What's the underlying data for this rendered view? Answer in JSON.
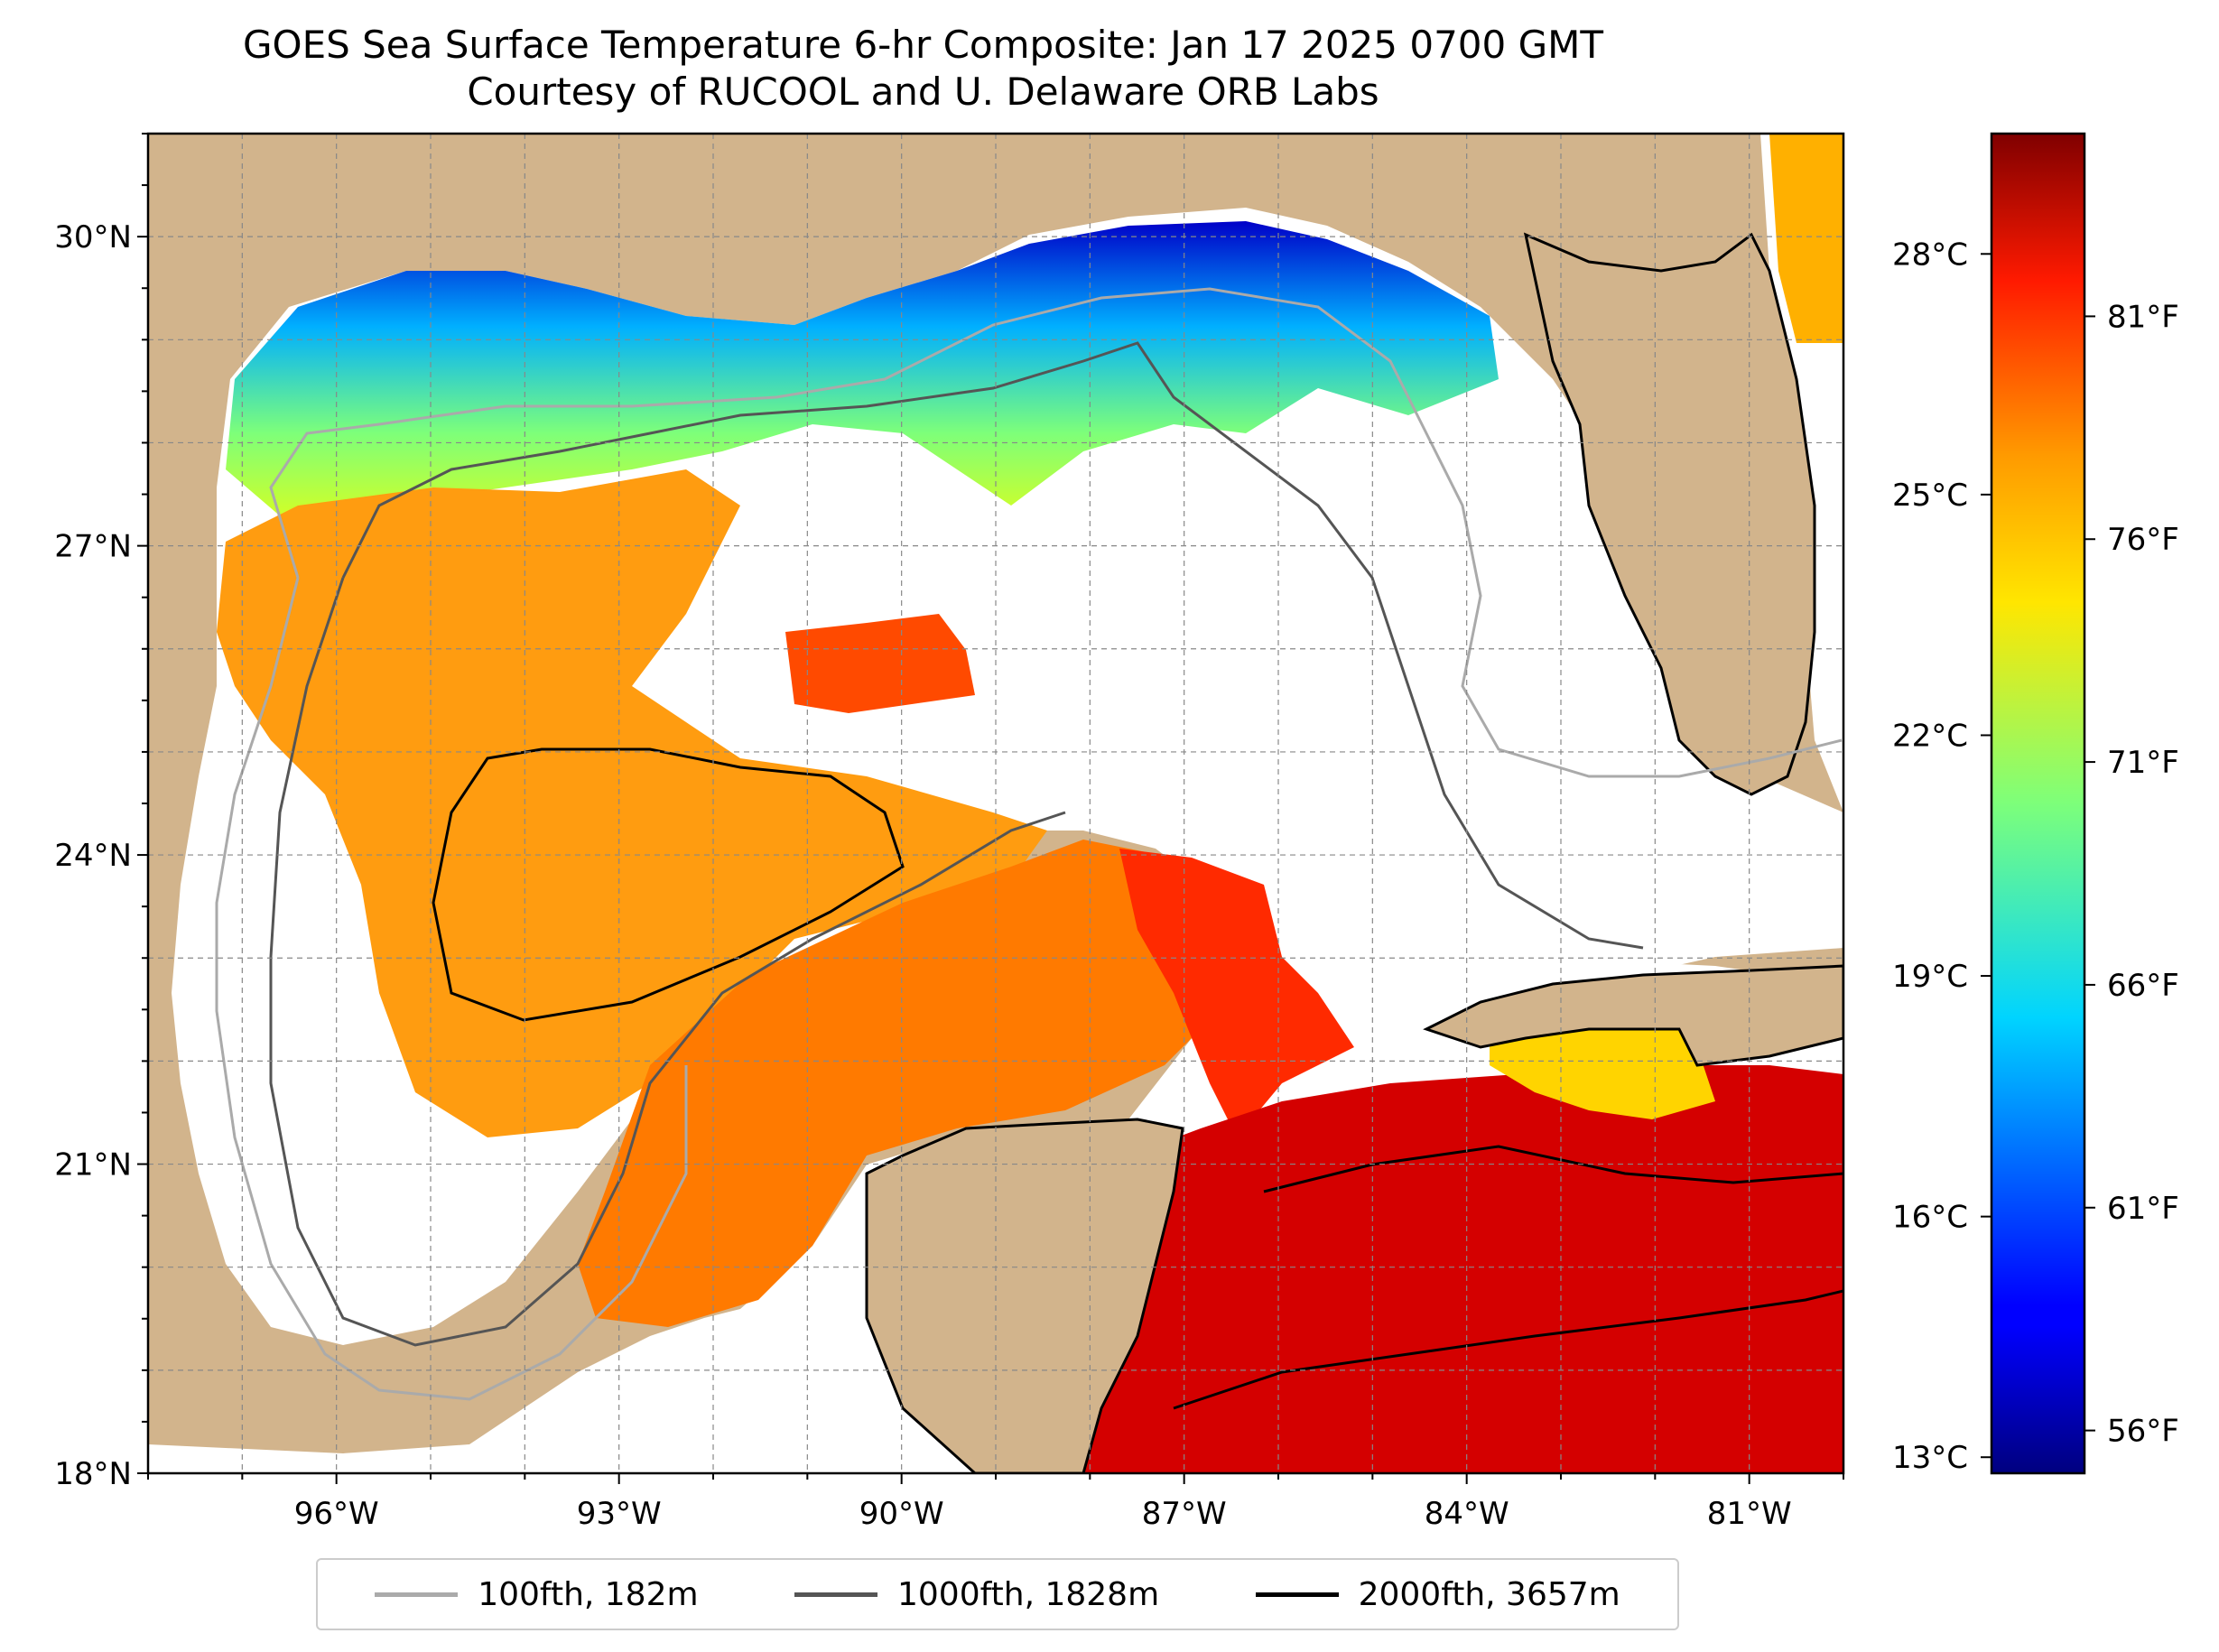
{
  "title": "GOES Sea Surface Temperature 6-hr Composite: Jan 17 2025 0700 GMT",
  "subtitle": "Courtesy of RUCOOL and U. Delaware ORB Labs",
  "map": {
    "lon_range": [
      -98,
      -80
    ],
    "lat_range": [
      18,
      31
    ],
    "lon_ticks": [
      {
        "value": -96,
        "label": "96°W"
      },
      {
        "value": -93,
        "label": "93°W"
      },
      {
        "value": -90,
        "label": "90°W"
      },
      {
        "value": -87,
        "label": "87°W"
      },
      {
        "value": -84,
        "label": "84°W"
      },
      {
        "value": -81,
        "label": "81°W"
      }
    ],
    "lat_ticks": [
      {
        "value": 18,
        "label": "18°N"
      },
      {
        "value": 21,
        "label": "21°N"
      },
      {
        "value": 24,
        "label": "24°N"
      },
      {
        "value": 27,
        "label": "27°N"
      },
      {
        "value": 30,
        "label": "30°N"
      }
    ],
    "land_color": "#d2b48c",
    "gridlines": true
  },
  "colorbar": {
    "colormap": "jet",
    "range_c": [
      12.8,
      29.5
    ],
    "celsius_ticks": [
      {
        "value": 13,
        "label": "13°C"
      },
      {
        "value": 16,
        "label": "16°C"
      },
      {
        "value": 19,
        "label": "19°C"
      },
      {
        "value": 22,
        "label": "22°C"
      },
      {
        "value": 25,
        "label": "25°C"
      },
      {
        "value": 28,
        "label": "28°C"
      }
    ],
    "fahrenheit_ticks": [
      {
        "value": 56,
        "label": "56°F"
      },
      {
        "value": 61,
        "label": "61°F"
      },
      {
        "value": 66,
        "label": "66°F"
      },
      {
        "value": 71,
        "label": "71°F"
      },
      {
        "value": 76,
        "label": "76°F"
      },
      {
        "value": 81,
        "label": "81°F"
      }
    ]
  },
  "legend": [
    {
      "label": "100fth, 182m",
      "color": "#aaaaaa"
    },
    {
      "label": "1000fth, 1828m",
      "color": "#555555"
    },
    {
      "label": "2000fth, 3657m",
      "color": "#000000"
    }
  ]
}
